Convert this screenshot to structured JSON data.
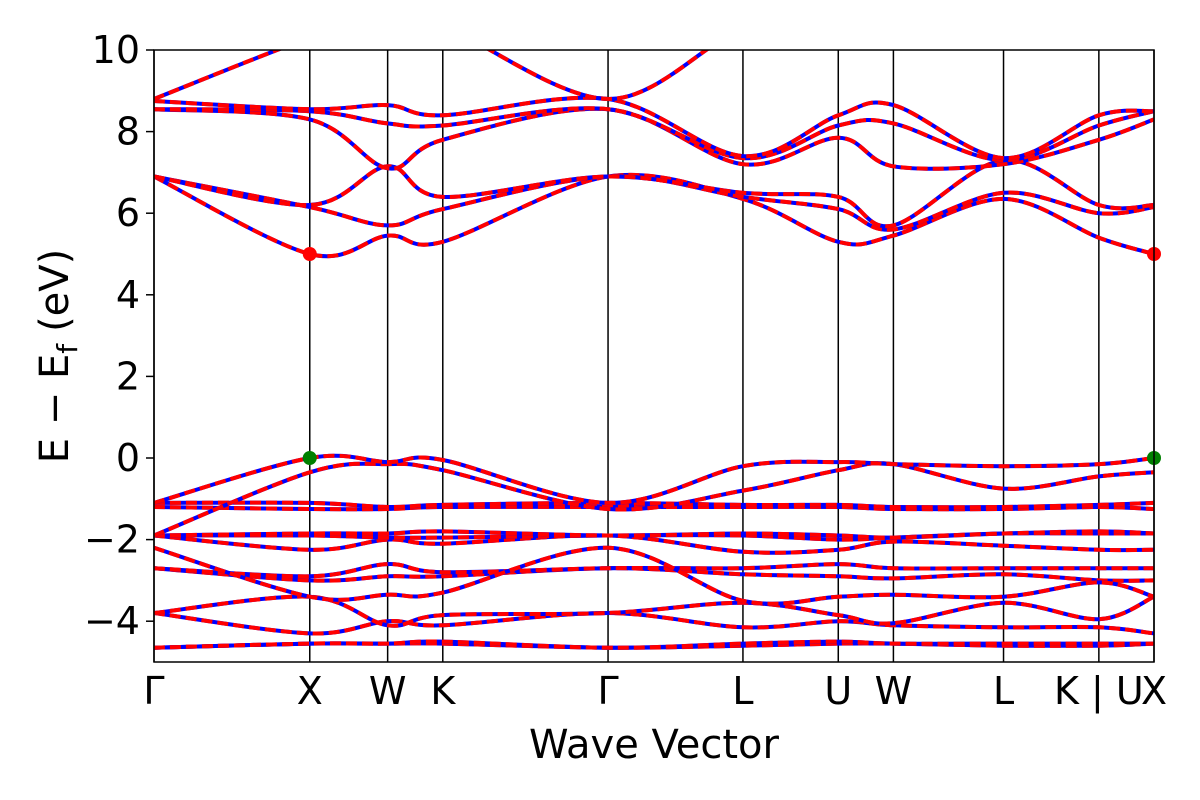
{
  "chart_data": {
    "type": "line",
    "title": "",
    "xlabel": "Wave Vector",
    "ylabel": "E − E",
    "ylabel_subscript": "f",
    "ylabel_unit": "(eV)",
    "ylim": [
      -5,
      10
    ],
    "y_ticks": [
      -4,
      -2,
      0,
      2,
      4,
      6,
      8,
      10
    ],
    "y_tick_labels": [
      "−4",
      "−2",
      "0",
      "2",
      "4",
      "6",
      "8",
      "10"
    ],
    "k_points": [
      {
        "label": "Γ",
        "pos": 0.0
      },
      {
        "label": "X",
        "pos": 1.0
      },
      {
        "label": "W",
        "pos": 1.5
      },
      {
        "label": "K",
        "pos": 1.854
      },
      {
        "label": "Γ",
        "pos": 2.915
      },
      {
        "label": "L",
        "pos": 3.781
      },
      {
        "label": "U",
        "pos": 4.393
      },
      {
        "label": "W",
        "pos": 4.747
      },
      {
        "label": "L",
        "pos": 5.454
      },
      {
        "label": "K | U",
        "pos": 6.066
      },
      {
        "label": "X",
        "pos": 6.42
      }
    ],
    "xlim": [
      0,
      6.42
    ],
    "grid": false,
    "legend": "none",
    "colors": {
      "band_spin_up": "#0000ff",
      "band_spin_down": "#ff0000",
      "vbm_marker": "#008000",
      "cbm_marker": "#ff0000",
      "kline": "#000000"
    },
    "series": [
      {
        "values": [
          -4.65,
          -4.55,
          -4.55,
          -4.55,
          -4.65,
          -4.6,
          -4.55,
          -4.55,
          -4.6,
          -4.6,
          -4.55
        ]
      },
      {
        "values": [
          -4.65,
          -4.55,
          -4.55,
          -4.5,
          -4.65,
          -4.55,
          -4.5,
          -4.55,
          -4.55,
          -4.55,
          -4.55
        ]
      },
      {
        "values": [
          -3.8,
          -4.3,
          -4.0,
          -4.1,
          -3.8,
          -4.15,
          -4.0,
          -4.1,
          -4.15,
          -4.15,
          -4.3
        ]
      },
      {
        "values": [
          -3.8,
          -3.4,
          -4.1,
          -3.85,
          -3.8,
          -3.55,
          -3.85,
          -4.05,
          -3.55,
          -3.95,
          -3.4
        ]
      },
      {
        "values": [
          -2.7,
          -3.0,
          -2.9,
          -2.9,
          -2.7,
          -2.85,
          -2.9,
          -2.95,
          -2.85,
          -3.0,
          -3.0
        ]
      },
      {
        "values": [
          -2.7,
          -2.9,
          -2.6,
          -2.8,
          -2.7,
          -2.7,
          -2.6,
          -2.7,
          -2.7,
          -2.7,
          -2.7
        ]
      },
      {
        "values": [
          -2.2,
          -3.4,
          -3.35,
          -3.3,
          -2.2,
          -3.5,
          -3.4,
          -3.35,
          -3.4,
          -3.05,
          -3.4
        ]
      },
      {
        "values": [
          -1.9,
          -2.25,
          -2.0,
          -2.1,
          -1.9,
          -2.3,
          -2.25,
          -2.05,
          -2.15,
          -2.25,
          -2.25
        ]
      },
      {
        "values": [
          -1.9,
          -1.9,
          -1.95,
          -1.95,
          -1.9,
          -1.9,
          -2.0,
          -1.95,
          -1.85,
          -1.85,
          -1.85
        ]
      },
      {
        "values": [
          -1.9,
          -1.85,
          -1.85,
          -1.8,
          -1.9,
          -1.85,
          -1.9,
          -1.95,
          -1.85,
          -1.8,
          -1.85
        ]
      },
      {
        "values": [
          -1.2,
          -1.25,
          -1.25,
          -1.2,
          -1.2,
          -1.2,
          -1.2,
          -1.25,
          -1.25,
          -1.2,
          -1.25
        ]
      },
      {
        "values": [
          -1.1,
          -1.1,
          -1.2,
          -1.15,
          -1.1,
          -1.15,
          -1.15,
          -1.2,
          -1.2,
          -1.15,
          -1.1
        ]
      },
      {
        "values": [
          -1.9,
          -0.35,
          -0.15,
          -0.3,
          -1.25,
          -0.8,
          -0.3,
          -0.15,
          -0.75,
          -0.45,
          -0.35
        ]
      },
      {
        "values": [
          -1.1,
          0.0,
          -0.1,
          -0.05,
          -1.1,
          -0.2,
          -0.1,
          -0.15,
          -0.2,
          -0.15,
          0.0
        ]
      },
      {
        "values": [
          6.9,
          5.0,
          5.45,
          5.3,
          6.9,
          6.35,
          5.3,
          5.45,
          6.35,
          5.4,
          5.0
        ]
      },
      {
        "values": [
          6.9,
          6.15,
          5.7,
          6.1,
          6.9,
          6.4,
          6.1,
          5.6,
          6.5,
          6.0,
          6.15
        ]
      },
      {
        "values": [
          6.9,
          6.2,
          7.15,
          6.4,
          6.9,
          6.5,
          6.4,
          5.7,
          7.3,
          6.2,
          6.2
        ]
      },
      {
        "values": [
          8.55,
          8.3,
          7.1,
          7.8,
          8.55,
          7.2,
          7.85,
          7.15,
          7.2,
          7.8,
          8.3
        ]
      },
      {
        "values": [
          8.55,
          8.5,
          8.2,
          8.15,
          8.55,
          7.35,
          8.15,
          8.2,
          7.3,
          8.15,
          8.5
        ]
      },
      {
        "values": [
          8.75,
          8.55,
          8.65,
          8.4,
          8.8,
          7.4,
          8.4,
          8.65,
          7.35,
          8.4,
          8.5
        ]
      },
      {
        "values": [
          8.8,
          10.3,
          10.8,
          10.6,
          8.8,
          10.5,
          10.5,
          10.6,
          10.5,
          10.5,
          10.3
        ]
      }
    ],
    "markers": [
      {
        "x": 1.0,
        "y": 0.0,
        "type": "vbm"
      },
      {
        "x": 6.42,
        "y": 0.0,
        "type": "vbm"
      },
      {
        "x": 1.0,
        "y": 5.0,
        "type": "cbm"
      },
      {
        "x": 6.42,
        "y": 5.0,
        "type": "cbm"
      }
    ]
  }
}
